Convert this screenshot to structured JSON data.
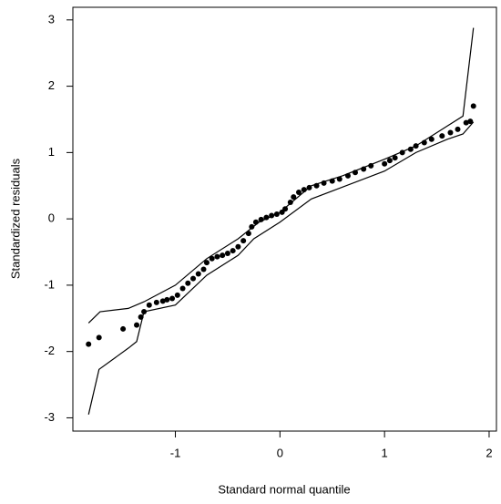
{
  "chart_data": {
    "type": "scatter",
    "xlabel": "Standard normal quantile",
    "ylabel": "Standardized residuals",
    "xlim": [
      -1.98,
      2.07
    ],
    "ylim": [
      -3.2,
      3.19
    ],
    "xticks": [
      -1,
      0,
      1,
      2
    ],
    "yticks": [
      -3,
      -2,
      -1,
      0,
      1,
      2,
      3
    ],
    "series": [
      {
        "type": "scatter",
        "color": "#000000",
        "x": [
          -1.83,
          -1.73,
          -1.5,
          -1.37,
          -1.33,
          -1.3,
          -1.25,
          -1.18,
          -1.12,
          -1.08,
          -1.03,
          -0.98,
          -0.93,
          -0.88,
          -0.83,
          -0.78,
          -0.73,
          -0.7,
          -0.65,
          -0.6,
          -0.55,
          -0.5,
          -0.45,
          -0.4,
          -0.35,
          -0.3,
          -0.27,
          -0.23,
          -0.18,
          -0.13,
          -0.08,
          -0.03,
          0.02,
          0.05,
          0.1,
          0.13,
          0.18,
          0.23,
          0.28,
          0.35,
          0.42,
          0.5,
          0.57,
          0.65,
          0.72,
          0.8,
          0.87,
          1.0,
          1.05,
          1.1,
          1.17,
          1.25,
          1.3,
          1.38,
          1.45,
          1.55,
          1.63,
          1.7,
          1.78,
          1.82,
          1.85
        ],
        "values": [
          -1.89,
          -1.79,
          -1.66,
          -1.6,
          -1.48,
          -1.4,
          -1.3,
          -1.26,
          -1.24,
          -1.22,
          -1.2,
          -1.15,
          -1.05,
          -0.97,
          -0.9,
          -0.83,
          -0.76,
          -0.66,
          -0.6,
          -0.57,
          -0.55,
          -0.52,
          -0.48,
          -0.42,
          -0.33,
          -0.22,
          -0.12,
          -0.05,
          -0.01,
          0.02,
          0.05,
          0.07,
          0.1,
          0.15,
          0.25,
          0.33,
          0.4,
          0.44,
          0.47,
          0.5,
          0.54,
          0.57,
          0.6,
          0.65,
          0.7,
          0.75,
          0.8,
          0.83,
          0.88,
          0.92,
          1.0,
          1.05,
          1.1,
          1.15,
          1.2,
          1.25,
          1.3,
          1.35,
          1.45,
          1.47,
          1.7
        ]
      },
      {
        "type": "line",
        "color": "#000000",
        "x": [
          -1.83,
          -1.72,
          -1.45,
          -1.3,
          -1.0,
          -0.7,
          -0.4,
          -0.2,
          0,
          0.3,
          0.6,
          1.0,
          1.3,
          1.6,
          1.75,
          1.85
        ],
        "values": [
          -1.57,
          -1.4,
          -1.35,
          -1.25,
          -1.0,
          -0.6,
          -0.3,
          -0.05,
          0.1,
          0.5,
          0.65,
          0.9,
          1.1,
          1.4,
          1.55,
          2.88
        ]
      },
      {
        "type": "line",
        "color": "#000000",
        "x": [
          -1.83,
          -1.73,
          -1.45,
          -1.37,
          -1.3,
          -1.0,
          -0.7,
          -0.4,
          -0.25,
          0,
          0.3,
          0.6,
          1.0,
          1.3,
          1.6,
          1.75,
          1.85
        ],
        "values": [
          -2.95,
          -2.27,
          -1.95,
          -1.85,
          -1.4,
          -1.3,
          -0.85,
          -0.55,
          -0.3,
          -0.05,
          0.3,
          0.48,
          0.72,
          1.0,
          1.2,
          1.28,
          1.46
        ]
      }
    ]
  }
}
